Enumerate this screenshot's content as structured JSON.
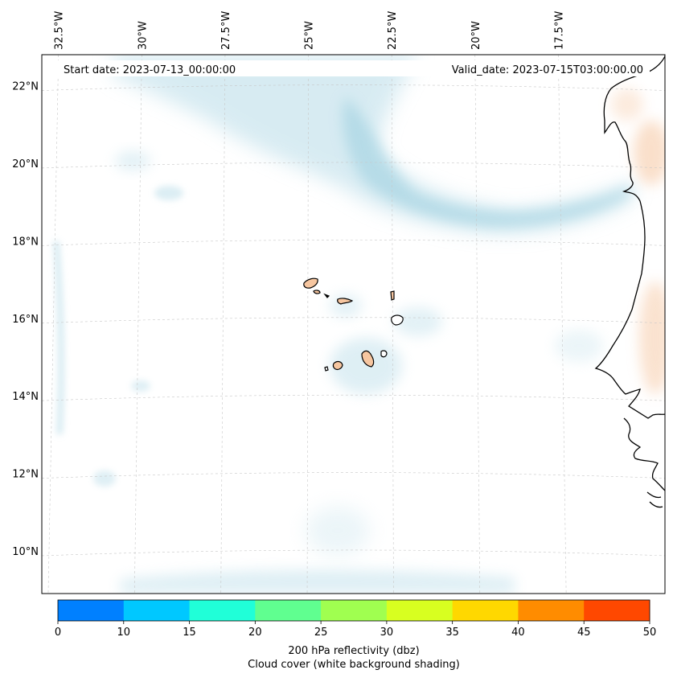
{
  "header": {
    "start_date": "Start date: 2023-07-13_00:00:00",
    "valid_date": "Valid_date: 2023-07-15T03:00:00.00"
  },
  "map": {
    "extent": {
      "lon_min": -33.0,
      "lon_max": -14.3,
      "lat_min": 8.9,
      "lat_max": 22.8
    },
    "lon_ticks": [
      {
        "value": -32.5,
        "label": "32.5°W"
      },
      {
        "value": -30.0,
        "label": "30°W"
      },
      {
        "value": -27.5,
        "label": "27.5°W"
      },
      {
        "value": -25.0,
        "label": "25°W"
      },
      {
        "value": -22.5,
        "label": "22.5°W"
      },
      {
        "value": -20.0,
        "label": "20°W"
      },
      {
        "value": -17.5,
        "label": "17.5°W"
      }
    ],
    "lat_ticks": [
      {
        "value": 22,
        "label": "22°N"
      },
      {
        "value": 20,
        "label": "20°N"
      },
      {
        "value": 18,
        "label": "18°N"
      },
      {
        "value": 16,
        "label": "16°N"
      },
      {
        "value": 14,
        "label": "14°N"
      },
      {
        "value": 12,
        "label": "12°N"
      },
      {
        "value": 10,
        "label": "10°N"
      }
    ],
    "colors": {
      "land": "#f6c6a0",
      "cloud": "#b8dce8",
      "coast": "#000000",
      "grid": "#c8c8c8"
    }
  },
  "colorbar": {
    "bounds": [
      0,
      10,
      15,
      20,
      25,
      30,
      35,
      40,
      45,
      50
    ],
    "tick_labels": [
      "0",
      "10",
      "15",
      "20",
      "25",
      "30",
      "35",
      "40",
      "45",
      "50"
    ],
    "colors": [
      "#0080ff",
      "#00c8ff",
      "#20ffd8",
      "#60ff90",
      "#a0ff50",
      "#d8ff20",
      "#ffd800",
      "#ff8c00",
      "#ff4800"
    ],
    "label_line1": "200 hPa reflectivity (dbz)",
    "label_line2": "Cloud cover (white background shading)"
  }
}
